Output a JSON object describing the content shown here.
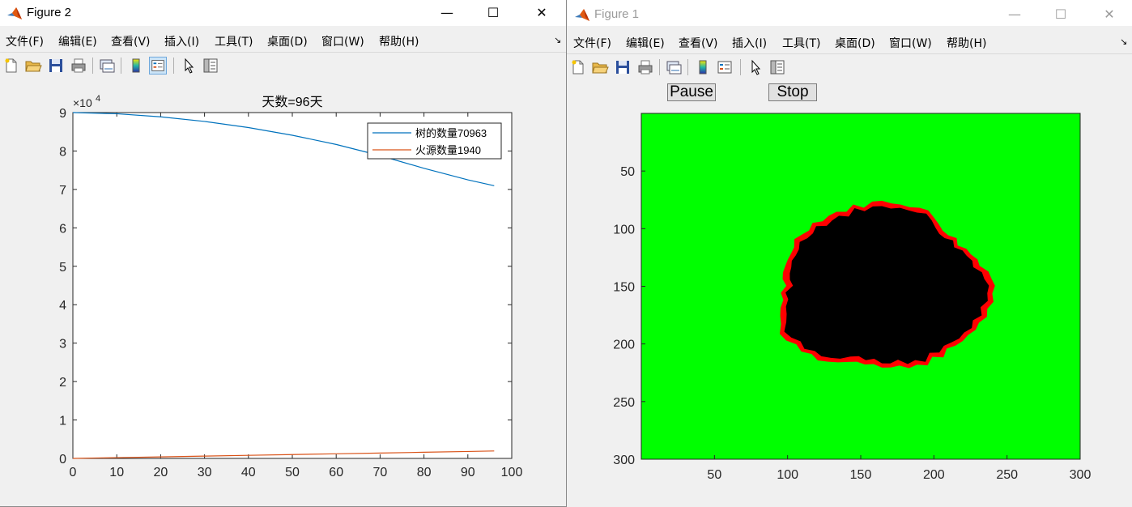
{
  "fig2": {
    "title": "Figure 2",
    "menu": [
      "文件(F)",
      "编辑(E)",
      "查看(V)",
      "插入(I)",
      "工具(T)",
      "桌面(D)",
      "窗口(W)",
      "帮助(H)"
    ],
    "plot": {
      "title": "天数=96天",
      "exponent_label": "×10",
      "exponent_power": "4",
      "legend": [
        "树的数量70963",
        "火源数量1940"
      ]
    }
  },
  "fig1": {
    "title": "Figure 1",
    "menu": [
      "文件(F)",
      "编辑(E)",
      "查看(V)",
      "插入(I)",
      "工具(T)",
      "桌面(D)",
      "窗口(W)",
      "帮助(H)"
    ],
    "pause_label": "Pause",
    "stop_label": "Stop"
  },
  "colors": {
    "tree_series": "#0072bd",
    "fire_series": "#d95319",
    "forest_green": "#00ff00",
    "burnt_black": "#000000",
    "fire_red": "#ff0000"
  },
  "chart_data": [
    {
      "type": "line",
      "title": "天数=96天",
      "xlim": [
        0,
        100
      ],
      "ylim": [
        0,
        90000
      ],
      "xticks": [
        0,
        10,
        20,
        30,
        40,
        50,
        60,
        70,
        80,
        90,
        100
      ],
      "yticks": [
        0,
        1,
        2,
        3,
        4,
        5,
        6,
        7,
        8,
        9
      ],
      "y_scale_factor": "×10^4",
      "legend_position": "top-right",
      "series": [
        {
          "name": "树的数量70963",
          "x": [
            0,
            10,
            20,
            30,
            40,
            50,
            60,
            70,
            80,
            90,
            96
          ],
          "values": [
            90000,
            89700,
            88900,
            87700,
            86100,
            84100,
            81700,
            78800,
            75500,
            72500,
            70963
          ]
        },
        {
          "name": "火源数量1940",
          "x": [
            0,
            10,
            20,
            30,
            40,
            50,
            60,
            70,
            80,
            90,
            96
          ],
          "values": [
            0,
            200,
            400,
            600,
            800,
            1000,
            1200,
            1400,
            1600,
            1800,
            1940
          ]
        }
      ]
    },
    {
      "type": "heatmap",
      "xlim": [
        0,
        300
      ],
      "ylim": [
        300,
        0
      ],
      "xticks": [
        50,
        100,
        150,
        200,
        250,
        300
      ],
      "yticks": [
        50,
        100,
        150,
        200,
        250,
        300
      ],
      "burned_region_center": [
        165,
        150
      ],
      "burned_region_radius": [
        72,
        73
      ],
      "categories": [
        "tree",
        "burnt",
        "fire"
      ]
    }
  ]
}
